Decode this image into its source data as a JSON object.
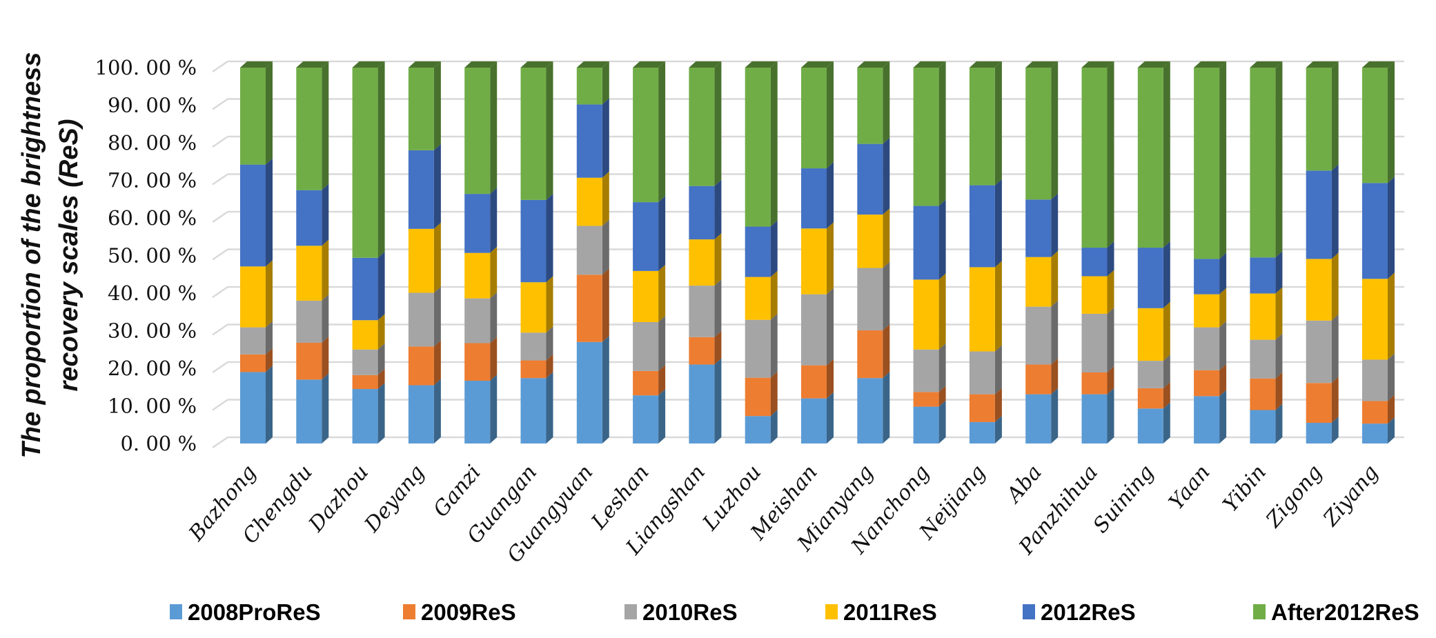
{
  "chart_data": {
    "type": "bar",
    "stacked": true,
    "normalized": true,
    "style": "3d-column",
    "title": "",
    "xlabel": "",
    "ylabel": [
      "The proportion of the brightness",
      "recovery scales  (ReS)"
    ],
    "ylim": [
      0,
      100
    ],
    "yticks": [
      "0. 00 %",
      "10. 00 %",
      "20. 00 %",
      "30. 00 %",
      "40. 00 %",
      "50. 00 %",
      "60. 00 %",
      "70. 00 %",
      "80. 00 %",
      "90. 00 %",
      "100. 00 %"
    ],
    "grid": true,
    "legend_position": "bottom",
    "categories": [
      "Bazhong",
      "Chengdu",
      "Dazhou",
      "Deyang",
      "Ganzi",
      "Guangan",
      "Guangyuan",
      "Leshan",
      "Liangshan",
      "Luzhou",
      "Meishan",
      "Mianyang",
      "Nanchong",
      "Neijiang",
      "Aba",
      "Panzhihua",
      "Suining",
      "Yaan",
      "Yibin",
      "Zigong",
      "Ziyang"
    ],
    "series": [
      {
        "name": "2008ProReS",
        "color": "#5B9BD5",
        "side_color": "#3A6589",
        "values": [
          19.0,
          17.0,
          14.5,
          15.5,
          16.7,
          17.4,
          27.0,
          12.8,
          21.0,
          7.3,
          12.0,
          17.4,
          9.8,
          5.7,
          13.1,
          13.1,
          9.3,
          12.6,
          8.9,
          5.5,
          5.3
        ]
      },
      {
        "name": "2009ReS",
        "color": "#ED7D31",
        "side_color": "#9A501F",
        "values": [
          4.7,
          9.8,
          3.7,
          10.3,
          10.0,
          4.7,
          17.9,
          6.5,
          7.3,
          10.2,
          8.8,
          12.7,
          3.9,
          7.4,
          7.9,
          5.8,
          5.4,
          6.9,
          8.4,
          10.6,
          6.0
        ]
      },
      {
        "name": "2010ReS",
        "color": "#A5A5A5",
        "side_color": "#6B6B6B",
        "values": [
          7.2,
          11.2,
          6.8,
          14.3,
          11.9,
          7.4,
          13.0,
          13.0,
          13.7,
          15.4,
          18.9,
          16.6,
          11.3,
          11.4,
          15.4,
          15.6,
          7.3,
          11.4,
          10.3,
          16.6,
          11.0
        ]
      },
      {
        "name": "2011ReS",
        "color": "#FFC000",
        "side_color": "#A67D00",
        "values": [
          16.2,
          14.6,
          7.8,
          17.0,
          12.1,
          13.4,
          12.8,
          13.6,
          12.3,
          11.4,
          17.5,
          14.2,
          18.6,
          22.4,
          13.2,
          10.0,
          14.0,
          8.8,
          12.3,
          16.4,
          21.5
        ]
      },
      {
        "name": "2012ReS",
        "color": "#4472C4",
        "side_color": "#2C4A80",
        "values": [
          27.1,
          14.8,
          16.6,
          20.9,
          15.7,
          21.9,
          19.5,
          18.3,
          14.2,
          13.4,
          16.0,
          18.8,
          19.6,
          21.8,
          15.3,
          7.6,
          16.1,
          9.4,
          9.6,
          23.5,
          25.5
        ]
      },
      {
        "name": "After2012ReS",
        "color": "#70AD47",
        "side_color": "#49712E",
        "values": [
          25.8,
          32.6,
          50.6,
          22.0,
          33.6,
          35.2,
          9.8,
          35.8,
          31.5,
          42.3,
          26.8,
          20.3,
          36.8,
          31.3,
          35.1,
          47.9,
          47.9,
          50.9,
          50.5,
          27.4,
          30.7
        ]
      }
    ]
  }
}
